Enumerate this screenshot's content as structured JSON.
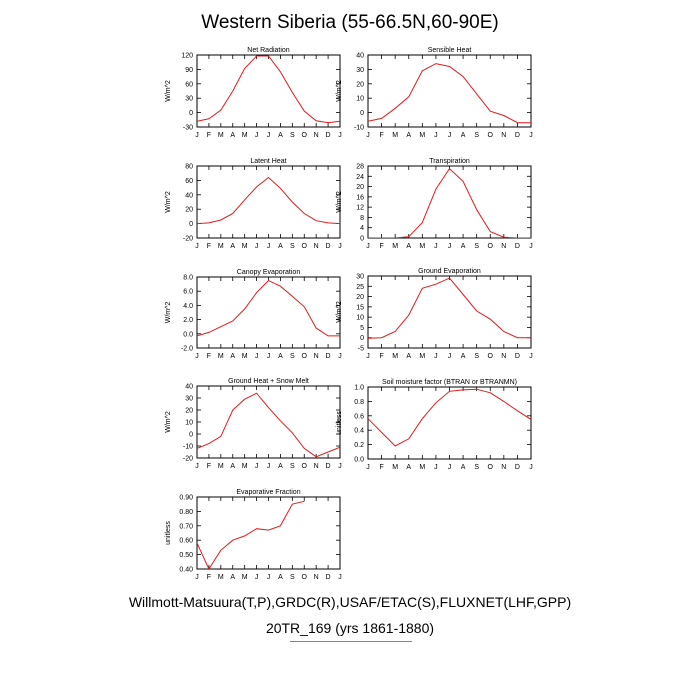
{
  "figure": {
    "title": "Western Siberia (55-66.5N,60-90E)",
    "footer_line1": "Willmott-Matsuura(T,P),GRDC(R),USAF/ETAC(S),FLUXNET(LHF,GPP)",
    "footer_line2": "20TR_169 (yrs 1861-1880)"
  },
  "colors": {
    "series": "#e41a1c",
    "axis": "#000000"
  },
  "chart_data": [
    {
      "type": "line",
      "title": "Net Radiation",
      "ylabel": "W/m^2",
      "categories": [
        "J",
        "F",
        "M",
        "A",
        "M",
        "J",
        "J",
        "A",
        "S",
        "O",
        "N",
        "D",
        "J"
      ],
      "ylim": [
        -30,
        120
      ],
      "yticks": [
        -30,
        0,
        30,
        60,
        90,
        120
      ],
      "yticklabels": [
        "-30",
        "0",
        "30",
        "60",
        "90",
        "120"
      ],
      "values": [
        -18,
        -13,
        5,
        45,
        92,
        118,
        118,
        85,
        42,
        3,
        -17,
        -21,
        -18
      ]
    },
    {
      "type": "line",
      "title": "Sensible Heat",
      "ylabel": "W/m^2",
      "categories": [
        "J",
        "F",
        "M",
        "A",
        "M",
        "J",
        "J",
        "A",
        "S",
        "O",
        "N",
        "D",
        "J"
      ],
      "ylim": [
        -10,
        40
      ],
      "yticks": [
        -10,
        0,
        10,
        20,
        30,
        40
      ],
      "yticklabels": [
        "-10",
        "0",
        "10",
        "20",
        "30",
        "40"
      ],
      "values": [
        -6,
        -4,
        3,
        11,
        29,
        34,
        32,
        25,
        13,
        1,
        -2,
        -7,
        -7
      ]
    },
    {
      "type": "line",
      "title": "Latent Heat",
      "ylabel": "W/m^2",
      "categories": [
        "J",
        "F",
        "M",
        "A",
        "M",
        "J",
        "J",
        "A",
        "S",
        "O",
        "N",
        "D",
        "J"
      ],
      "ylim": [
        -20,
        80
      ],
      "yticks": [
        -20,
        0,
        20,
        40,
        60,
        80
      ],
      "yticklabels": [
        "-20",
        "0",
        "20",
        "40",
        "60",
        "80"
      ],
      "values": [
        0,
        1,
        5,
        14,
        33,
        51,
        64,
        49,
        30,
        14,
        4,
        1,
        0
      ]
    },
    {
      "type": "line",
      "title": "Transpiration",
      "ylabel": "W/m^2",
      "categories": [
        "J",
        "F",
        "M",
        "A",
        "M",
        "J",
        "J",
        "A",
        "S",
        "O",
        "N",
        "D",
        "J"
      ],
      "ylim": [
        0,
        28
      ],
      "yticks": [
        0,
        4,
        8,
        12,
        16,
        20,
        24,
        28
      ],
      "yticklabels": [
        "0",
        "4",
        "8",
        "12",
        "16",
        "20",
        "24",
        "28"
      ],
      "values": [
        0,
        0,
        0,
        0.5,
        6,
        19,
        27,
        22,
        11,
        2.5,
        0.3,
        0,
        0
      ]
    },
    {
      "type": "line",
      "title": "Canopy Evaporation",
      "ylabel": "W/m^2",
      "categories": [
        "J",
        "F",
        "M",
        "A",
        "M",
        "J",
        "J",
        "A",
        "S",
        "O",
        "N",
        "D",
        "J"
      ],
      "ylim": [
        -2,
        8
      ],
      "yticks": [
        -2,
        0,
        2,
        4,
        6,
        8
      ],
      "yticklabels": [
        "-2.0",
        "0.0",
        "2.0",
        "4.0",
        "6.0",
        "8.0"
      ],
      "values": [
        -0.3,
        0.2,
        1.0,
        1.8,
        3.5,
        5.8,
        7.5,
        6.7,
        5.3,
        3.8,
        0.8,
        -0.3,
        -0.3
      ]
    },
    {
      "type": "line",
      "title": "Ground Evaporation",
      "ylabel": "W/m^2",
      "categories": [
        "J",
        "F",
        "M",
        "A",
        "M",
        "J",
        "J",
        "A",
        "S",
        "O",
        "N",
        "D",
        "J"
      ],
      "ylim": [
        -5,
        30
      ],
      "yticks": [
        -5,
        0,
        5,
        10,
        15,
        20,
        25,
        30
      ],
      "yticklabels": [
        "-5",
        "0",
        "5",
        "10",
        "15",
        "20",
        "25",
        "30"
      ],
      "values": [
        -0.3,
        0,
        3,
        11,
        24,
        26,
        29,
        21,
        13,
        9,
        3,
        0,
        0
      ]
    },
    {
      "type": "line",
      "title": "Ground Heat + Snow Melt",
      "ylabel": "W/m^2",
      "categories": [
        "J",
        "F",
        "M",
        "A",
        "M",
        "J",
        "J",
        "A",
        "S",
        "O",
        "N",
        "D",
        "J"
      ],
      "ylim": [
        -20,
        40
      ],
      "yticks": [
        -20,
        -10,
        0,
        10,
        20,
        30,
        40
      ],
      "yticklabels": [
        "-20",
        "-10",
        "0",
        "10",
        "20",
        "30",
        "40"
      ],
      "values": [
        -12,
        -8,
        -2,
        20,
        29,
        34,
        22,
        11,
        1,
        -12,
        -19,
        -15,
        -11
      ]
    },
    {
      "type": "line",
      "title": "Soil moisture factor (BTRAN or BTRANMN)",
      "ylabel": "unitless",
      "categories": [
        "J",
        "F",
        "M",
        "A",
        "M",
        "J",
        "J",
        "A",
        "S",
        "O",
        "N",
        "D",
        "J"
      ],
      "ylim": [
        0,
        1
      ],
      "yticks": [
        0,
        0.2,
        0.4,
        0.6,
        0.8,
        1.0
      ],
      "yticklabels": [
        "0.0",
        "0.2",
        "0.4",
        "0.6",
        "0.8",
        "1.0"
      ],
      "values": [
        0.56,
        0.37,
        0.18,
        0.28,
        0.56,
        0.78,
        0.94,
        0.96,
        0.97,
        0.92,
        0.8,
        0.67,
        0.55
      ]
    },
    {
      "type": "line",
      "title": "Evaporative Fraction",
      "ylabel": "unitless",
      "categories": [
        "J",
        "F",
        "M",
        "A",
        "M",
        "J",
        "J",
        "A",
        "S",
        "O",
        "N",
        "D",
        "J"
      ],
      "ylim": [
        0.4,
        0.9
      ],
      "yticks": [
        0.4,
        0.5,
        0.6,
        0.7,
        0.8,
        0.9
      ],
      "yticklabels": [
        "0.40",
        "0.50",
        "0.60",
        "0.70",
        "0.80",
        "0.90"
      ],
      "values": [
        0.58,
        0.4,
        0.53,
        0.6,
        0.63,
        0.68,
        0.67,
        0.7,
        0.85,
        0.87,
        null,
        null,
        null
      ]
    }
  ]
}
